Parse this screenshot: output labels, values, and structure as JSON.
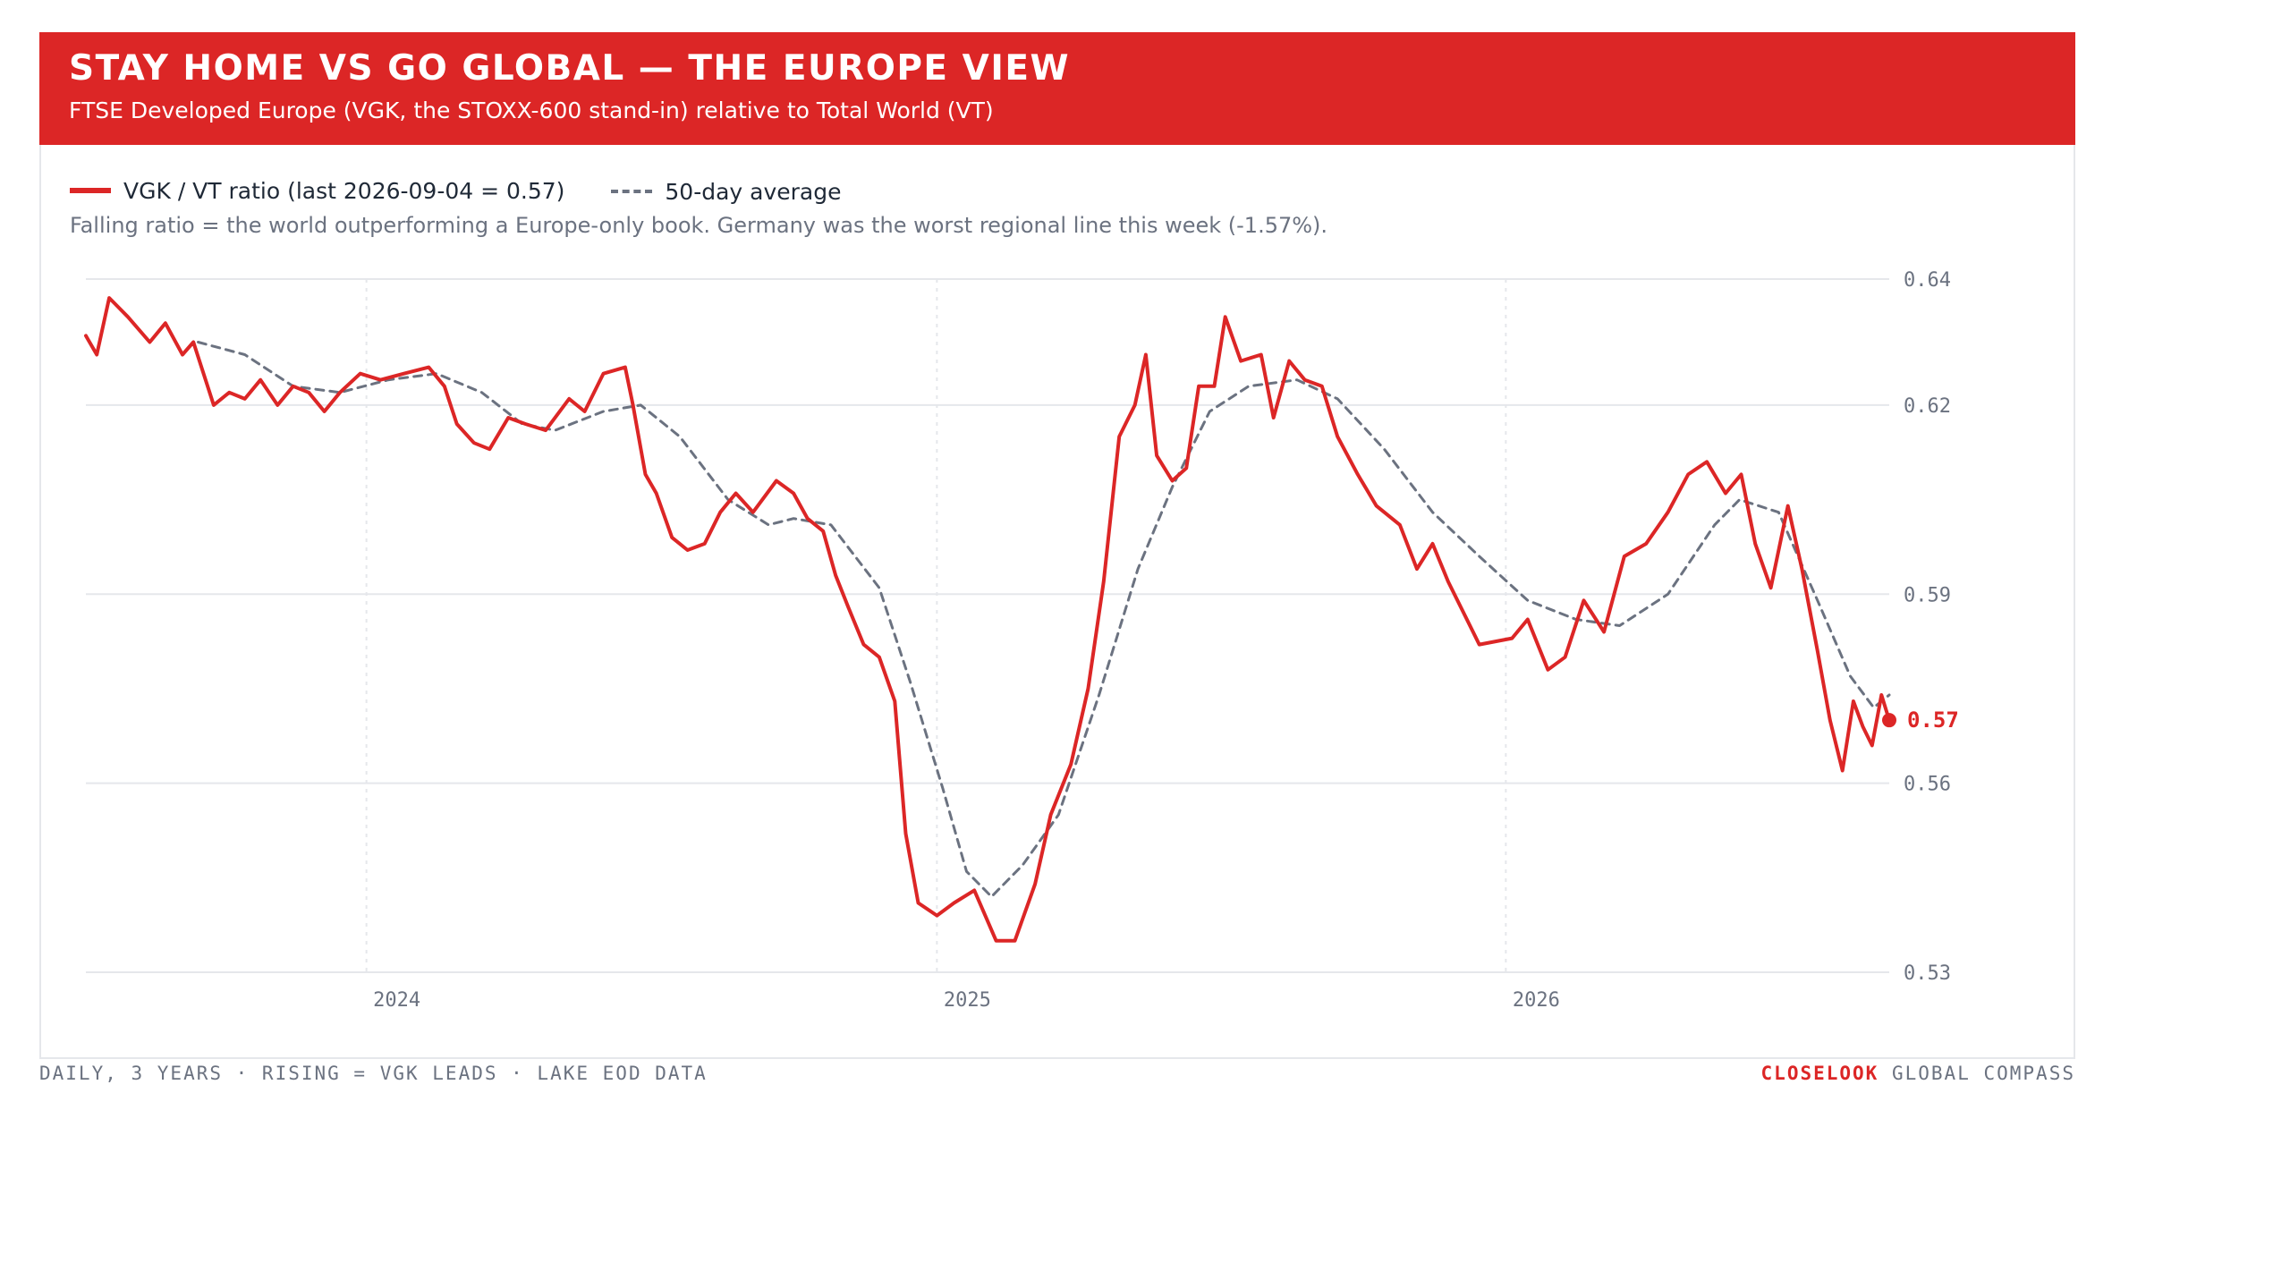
{
  "header": {
    "title": "STAY HOME VS GO GLOBAL — THE EUROPE VIEW",
    "subtitle": "FTSE Developed Europe (VGK, the STOXX-600 stand-in) relative to Total World (VT)"
  },
  "legend": {
    "series_label": "VGK / VT ratio (last 2026-09-04 = 0.57)",
    "average_label": "50-day average"
  },
  "note": "Falling ratio = the world outperforming a Europe-only book. Germany was the worst regional line this week (-1.57%).",
  "footer": {
    "left": "DAILY, 3 YEARS · RISING = VGK LEADS · LAKE EOD DATA",
    "brand": "CLOSELOOK",
    "right": "GLOBAL COMPASS"
  },
  "colors": {
    "accent": "#dc2626",
    "average": "#6b7280",
    "grid": "#e5e7eb",
    "text": "#1f2937",
    "muted": "#6b7280"
  },
  "chart_data": {
    "type": "line",
    "title": "STAY HOME VS GO GLOBAL — THE EUROPE VIEW",
    "xlabel": "",
    "ylabel": "",
    "xlim": [
      "2023-07-05",
      "2026-09-04"
    ],
    "ylim": [
      0.53,
      0.64
    ],
    "y_ticks": [
      0.64,
      0.62,
      0.59,
      0.56,
      0.53
    ],
    "y_tick_labels": [
      "0.64",
      "0.62",
      "0.59",
      "0.56",
      "0.53"
    ],
    "x_ticks": [
      "2024-01-01",
      "2025-01-01",
      "2026-01-01"
    ],
    "x_tick_labels": [
      "2024",
      "2025",
      "2026"
    ],
    "grid": true,
    "legend_position": "top-left",
    "end_label": "0.57",
    "series": [
      {
        "name": "VGK / VT ratio (last 2026-09-04 = 0.57)",
        "style": "solid",
        "color": "#dc2626",
        "points": [
          [
            "2023-07-05",
            0.631
          ],
          [
            "2023-07-12",
            0.628
          ],
          [
            "2023-07-20",
            0.637
          ],
          [
            "2023-08-01",
            0.634
          ],
          [
            "2023-08-15",
            0.63
          ],
          [
            "2023-08-25",
            0.633
          ],
          [
            "2023-09-05",
            0.628
          ],
          [
            "2023-09-12",
            0.63
          ],
          [
            "2023-09-25",
            0.62
          ],
          [
            "2023-10-05",
            0.622
          ],
          [
            "2023-10-15",
            0.621
          ],
          [
            "2023-10-25",
            0.624
          ],
          [
            "2023-11-05",
            0.62
          ],
          [
            "2023-11-15",
            0.623
          ],
          [
            "2023-11-25",
            0.622
          ],
          [
            "2023-12-05",
            0.619
          ],
          [
            "2023-12-15",
            0.622
          ],
          [
            "2023-12-28",
            0.625
          ],
          [
            "2024-01-10",
            0.624
          ],
          [
            "2024-01-25",
            0.625
          ],
          [
            "2024-02-10",
            0.626
          ],
          [
            "2024-02-20",
            0.623
          ],
          [
            "2024-02-28",
            0.617
          ],
          [
            "2024-03-10",
            0.614
          ],
          [
            "2024-03-20",
            0.613
          ],
          [
            "2024-04-01",
            0.618
          ],
          [
            "2024-04-12",
            0.617
          ],
          [
            "2024-04-25",
            0.616
          ],
          [
            "2024-05-10",
            0.621
          ],
          [
            "2024-05-20",
            0.619
          ],
          [
            "2024-06-01",
            0.625
          ],
          [
            "2024-06-15",
            0.626
          ],
          [
            "2024-06-20",
            0.62
          ],
          [
            "2024-06-28",
            0.609
          ],
          [
            "2024-07-05",
            0.606
          ],
          [
            "2024-07-15",
            0.599
          ],
          [
            "2024-07-25",
            0.597
          ],
          [
            "2024-08-05",
            0.598
          ],
          [
            "2024-08-15",
            0.603
          ],
          [
            "2024-08-25",
            0.606
          ],
          [
            "2024-09-05",
            0.603
          ],
          [
            "2024-09-20",
            0.608
          ],
          [
            "2024-10-01",
            0.606
          ],
          [
            "2024-10-10",
            0.602
          ],
          [
            "2024-10-20",
            0.6
          ],
          [
            "2024-10-28",
            0.593
          ],
          [
            "2024-11-05",
            0.588
          ],
          [
            "2024-11-15",
            0.582
          ],
          [
            "2024-11-25",
            0.58
          ],
          [
            "2024-12-05",
            0.573
          ],
          [
            "2024-12-12",
            0.552
          ],
          [
            "2024-12-20",
            0.541
          ],
          [
            "2025-01-01",
            0.539
          ],
          [
            "2025-01-12",
            0.541
          ],
          [
            "2025-01-25",
            0.543
          ],
          [
            "2025-02-08",
            0.535
          ],
          [
            "2025-02-20",
            0.535
          ],
          [
            "2025-03-05",
            0.544
          ],
          [
            "2025-03-15",
            0.555
          ],
          [
            "2025-03-28",
            0.563
          ],
          [
            "2025-04-08",
            0.575
          ],
          [
            "2025-04-18",
            0.592
          ],
          [
            "2025-04-28",
            0.615
          ],
          [
            "2025-05-08",
            0.62
          ],
          [
            "2025-05-15",
            0.628
          ],
          [
            "2025-05-22",
            0.612
          ],
          [
            "2025-06-01",
            0.608
          ],
          [
            "2025-06-10",
            0.61
          ],
          [
            "2025-06-18",
            0.623
          ],
          [
            "2025-06-28",
            0.623
          ],
          [
            "2025-07-05",
            0.634
          ],
          [
            "2025-07-15",
            0.627
          ],
          [
            "2025-07-28",
            0.628
          ],
          [
            "2025-08-05",
            0.618
          ],
          [
            "2025-08-15",
            0.627
          ],
          [
            "2025-08-25",
            0.624
          ],
          [
            "2025-09-05",
            0.623
          ],
          [
            "2025-09-15",
            0.615
          ],
          [
            "2025-09-28",
            0.609
          ],
          [
            "2025-10-10",
            0.604
          ],
          [
            "2025-10-25",
            0.601
          ],
          [
            "2025-11-05",
            0.594
          ],
          [
            "2025-11-15",
            0.598
          ],
          [
            "2025-11-25",
            0.592
          ],
          [
            "2025-12-05",
            0.587
          ],
          [
            "2025-12-15",
            0.582
          ],
          [
            "2026-01-05",
            0.583
          ],
          [
            "2026-01-15",
            0.586
          ],
          [
            "2026-01-28",
            0.578
          ],
          [
            "2026-02-08",
            0.58
          ],
          [
            "2026-02-20",
            0.589
          ],
          [
            "2026-03-05",
            0.584
          ],
          [
            "2026-03-18",
            0.596
          ],
          [
            "2026-04-01",
            0.598
          ],
          [
            "2026-04-15",
            0.603
          ],
          [
            "2026-04-28",
            0.609
          ],
          [
            "2026-05-10",
            0.611
          ],
          [
            "2026-05-22",
            0.606
          ],
          [
            "2026-06-01",
            0.609
          ],
          [
            "2026-06-10",
            0.598
          ],
          [
            "2026-06-20",
            0.591
          ],
          [
            "2026-07-01",
            0.604
          ],
          [
            "2026-07-10",
            0.594
          ],
          [
            "2026-07-20",
            0.581
          ],
          [
            "2026-07-28",
            0.57
          ],
          [
            "2026-08-05",
            0.562
          ],
          [
            "2026-08-12",
            0.573
          ],
          [
            "2026-08-18",
            0.569
          ],
          [
            "2026-08-24",
            0.566
          ],
          [
            "2026-08-30",
            0.574
          ],
          [
            "2026-09-04",
            0.57
          ]
        ]
      },
      {
        "name": "50-day average",
        "style": "dashed",
        "color": "#6b7280",
        "points": [
          [
            "2023-09-15",
            0.63
          ],
          [
            "2023-10-15",
            0.628
          ],
          [
            "2023-11-15",
            0.623
          ],
          [
            "2023-12-15",
            0.622
          ],
          [
            "2024-01-15",
            0.624
          ],
          [
            "2024-02-15",
            0.625
          ],
          [
            "2024-03-15",
            0.622
          ],
          [
            "2024-04-10",
            0.617
          ],
          [
            "2024-05-01",
            0.616
          ],
          [
            "2024-06-01",
            0.619
          ],
          [
            "2024-06-25",
            0.62
          ],
          [
            "2024-07-20",
            0.615
          ],
          [
            "2024-08-20",
            0.605
          ],
          [
            "2024-09-15",
            0.601
          ],
          [
            "2024-10-01",
            0.602
          ],
          [
            "2024-10-25",
            0.601
          ],
          [
            "2024-11-25",
            0.591
          ],
          [
            "2024-12-15",
            0.576
          ],
          [
            "2025-01-05",
            0.559
          ],
          [
            "2025-01-20",
            0.546
          ],
          [
            "2025-02-05",
            0.542
          ],
          [
            "2025-02-25",
            0.547
          ],
          [
            "2025-03-20",
            0.555
          ],
          [
            "2025-04-15",
            0.574
          ],
          [
            "2025-05-10",
            0.594
          ],
          [
            "2025-06-01",
            0.607
          ],
          [
            "2025-06-25",
            0.619
          ],
          [
            "2025-07-20",
            0.623
          ],
          [
            "2025-08-20",
            0.624
          ],
          [
            "2025-09-15",
            0.621
          ],
          [
            "2025-10-15",
            0.613
          ],
          [
            "2025-11-15",
            0.603
          ],
          [
            "2025-12-15",
            0.596
          ],
          [
            "2026-01-15",
            0.589
          ],
          [
            "2026-02-15",
            0.586
          ],
          [
            "2026-03-15",
            0.585
          ],
          [
            "2026-04-15",
            0.59
          ],
          [
            "2026-05-15",
            0.601
          ],
          [
            "2026-05-31",
            0.605
          ],
          [
            "2026-06-25",
            0.603
          ],
          [
            "2026-07-20",
            0.589
          ],
          [
            "2026-08-10",
            0.577
          ],
          [
            "2026-08-25",
            0.572
          ],
          [
            "2026-09-04",
            0.574
          ]
        ]
      }
    ]
  }
}
